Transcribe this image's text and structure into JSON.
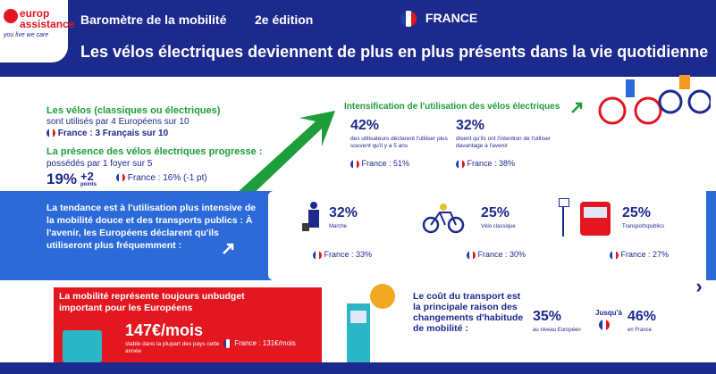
{
  "logo": {
    "line1": "europ",
    "line2": "assistance",
    "tagline": "you live we care"
  },
  "header": {
    "title": "Baromètre de la mobilité",
    "edition": "2e édition",
    "country": "FRANCE",
    "headline": "Les vélos électriques deviennent de plus en plus présents dans la vie quotidienne"
  },
  "left": {
    "velos_title": "Les vélos (classiques ou électriques)",
    "velos_sub": "sont utilisés par 4 Européens sur 10",
    "velos_fr": "France : 3 Français sur 10",
    "presence_title": "La présence des vélos électriques progresse :",
    "presence_sub": "possédés par 1 foyer sur 5",
    "pct": "19%",
    "delta": "+2",
    "delta_unit": "points",
    "presence_fr": "France : 16% (-1 pt)"
  },
  "intens": {
    "title": "Intensification de l'utilisation des vélos électriques",
    "a_pct": "42%",
    "a_txt": "des utilisateurs déclarent l'utiliser plus souvent qu'il y a 5 ans",
    "a_fr": "France : 51%",
    "b_pct": "32%",
    "b_txt": "disent qu'ils ont l'intention de l'utiliser davantage à l'avenir",
    "b_fr": "France : 38%"
  },
  "trend": {
    "text": "La tendance est à l'utilisation plus intensive de la mobilité douce et des transports publics : À l'avenir, les Européens déclarent qu'ils utiliseront plus fréquemment :",
    "items": [
      {
        "pct": "32%",
        "label": "Marche",
        "fr": "France : 33%"
      },
      {
        "pct": "25%",
        "label": "Vélo classique",
        "fr": "France : 30%"
      },
      {
        "pct": "25%",
        "label": "Transportspublics",
        "fr": "France : 27%"
      }
    ]
  },
  "cost": {
    "title": "La mobilité représente toujours unbudget important pour les Européens",
    "amount": "147€/mois",
    "sub": "stable dans la plupart des pays cette année",
    "fr": "France : 131€/mois"
  },
  "reason": {
    "title": "Le coût du transport est la principale raison des changements d'habitude de mobilité :",
    "eu_pct": "35%",
    "eu_lbl": "au niveau Européen",
    "fr_pre": "Jusqu'à",
    "fr_pct": "46%",
    "fr_lbl": "en France"
  },
  "colors": {
    "navy": "#1c2a8e",
    "red": "#e2171f",
    "green": "#1e9e3a",
    "blue": "#2b6ad8"
  }
}
